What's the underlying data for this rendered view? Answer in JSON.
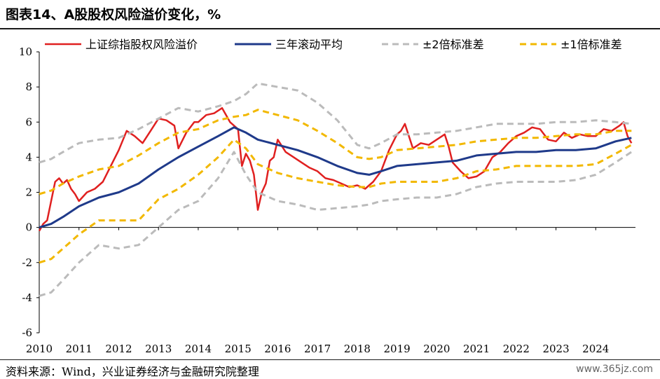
{
  "header": {
    "title": "图表14、A股股权风险溢价变化，%"
  },
  "footer": {
    "source": "资料来源：Wind，兴业证券经济与金融研究院整理",
    "watermark": "www.365jz.com"
  },
  "chart_data": {
    "type": "line",
    "title": "图表14、A股股权风险溢价变化，%",
    "x_ticks": [
      "2010",
      "2011",
      "2012",
      "2013",
      "2014",
      "2015",
      "2016",
      "2017",
      "2018",
      "2019",
      "2020",
      "2021",
      "2022",
      "2023",
      "2024"
    ],
    "y_ticks": [
      "10",
      "8",
      "6",
      "4",
      "2",
      "0",
      "-2",
      "-4",
      "-6"
    ],
    "ylim": [
      -6,
      10
    ],
    "xlim": [
      2010,
      2025
    ],
    "legend_position": "top",
    "series": [
      {
        "name": "上证综指股权风险溢价",
        "color": "#e02020",
        "style": "solid",
        "x": [
          2010.0,
          2010.1,
          2010.2,
          2010.3,
          2010.4,
          2010.5,
          2010.6,
          2010.7,
          2010.8,
          2010.9,
          2011.0,
          2011.2,
          2011.4,
          2011.6,
          2011.8,
          2012.0,
          2012.2,
          2012.4,
          2012.6,
          2012.8,
          2013.0,
          2013.2,
          2013.4,
          2013.5,
          2013.7,
          2013.9,
          2014.0,
          2014.2,
          2014.4,
          2014.6,
          2014.8,
          2014.9,
          2015.0,
          2015.1,
          2015.2,
          2015.3,
          2015.4,
          2015.5,
          2015.6,
          2015.7,
          2015.8,
          2015.9,
          2016.0,
          2016.2,
          2016.4,
          2016.6,
          2016.8,
          2017.0,
          2017.2,
          2017.4,
          2017.6,
          2017.8,
          2018.0,
          2018.2,
          2018.4,
          2018.6,
          2018.8,
          2019.0,
          2019.1,
          2019.2,
          2019.4,
          2019.6,
          2019.8,
          2020.0,
          2020.2,
          2020.3,
          2020.4,
          2020.6,
          2020.8,
          2021.0,
          2021.2,
          2021.4,
          2021.6,
          2021.8,
          2022.0,
          2022.2,
          2022.4,
          2022.6,
          2022.8,
          2023.0,
          2023.2,
          2023.4,
          2023.6,
          2023.8,
          2024.0,
          2024.2,
          2024.4,
          2024.6,
          2024.7,
          2024.8,
          2024.9
        ],
        "y": [
          -0.2,
          0.2,
          0.4,
          1.5,
          2.6,
          2.8,
          2.5,
          2.7,
          2.2,
          1.9,
          1.5,
          2.0,
          2.2,
          2.6,
          3.5,
          4.4,
          5.5,
          5.2,
          4.8,
          5.5,
          6.2,
          6.1,
          5.8,
          4.5,
          5.4,
          6.0,
          6.0,
          6.4,
          6.5,
          6.8,
          6.0,
          5.8,
          5.6,
          3.5,
          4.2,
          3.8,
          3.0,
          1.0,
          2.0,
          2.5,
          3.8,
          4.0,
          5.0,
          4.3,
          4.0,
          3.7,
          3.4,
          3.2,
          2.8,
          2.7,
          2.5,
          2.3,
          2.4,
          2.2,
          2.6,
          3.2,
          4.4,
          5.3,
          5.5,
          5.9,
          4.5,
          4.8,
          4.7,
          5.0,
          5.3,
          4.6,
          3.7,
          3.2,
          2.8,
          2.9,
          3.2,
          4.0,
          4.3,
          4.8,
          5.2,
          5.4,
          5.7,
          5.6,
          5.0,
          4.9,
          5.4,
          5.1,
          5.3,
          5.2,
          5.2,
          5.6,
          5.5,
          5.8,
          6.0,
          5.2,
          4.8
        ]
      },
      {
        "name": "三年滚动平均",
        "color": "#1f3a8a",
        "style": "solid",
        "x": [
          2010.0,
          2010.3,
          2010.6,
          2011.0,
          2011.5,
          2012.0,
          2012.5,
          2013.0,
          2013.5,
          2014.0,
          2014.5,
          2014.9,
          2015.2,
          2015.5,
          2016.0,
          2016.5,
          2017.0,
          2017.5,
          2018.0,
          2018.3,
          2018.6,
          2019.0,
          2019.5,
          2020.0,
          2020.5,
          2021.0,
          2021.5,
          2022.0,
          2022.5,
          2023.0,
          2023.5,
          2024.0,
          2024.5,
          2024.9
        ],
        "y": [
          0.0,
          0.2,
          0.6,
          1.2,
          1.7,
          2.0,
          2.5,
          3.3,
          4.0,
          4.6,
          5.2,
          5.7,
          5.4,
          5.0,
          4.7,
          4.4,
          4.0,
          3.5,
          3.1,
          3.0,
          3.2,
          3.5,
          3.6,
          3.7,
          3.8,
          4.1,
          4.2,
          4.3,
          4.3,
          4.4,
          4.4,
          4.5,
          4.9,
          5.1
        ]
      },
      {
        "name": "±2倍标准差",
        "color": "#bbbbbb",
        "style": "dashed",
        "x": [
          2010.0,
          2010.3,
          2010.6,
          2011.0,
          2011.5,
          2012.0,
          2012.5,
          2013.0,
          2013.5,
          2014.0,
          2014.5,
          2014.9,
          2015.2,
          2015.5,
          2016.0,
          2016.5,
          2017.0,
          2017.5,
          2018.0,
          2018.3,
          2018.6,
          2019.0,
          2019.5,
          2020.0,
          2020.5,
          2021.0,
          2021.5,
          2022.0,
          2022.5,
          2023.0,
          2023.5,
          2024.0,
          2024.5,
          2024.9
        ],
        "y": [
          3.7,
          3.9,
          4.3,
          4.8,
          5.0,
          5.1,
          5.6,
          6.2,
          6.8,
          6.6,
          6.9,
          7.2,
          7.6,
          8.2,
          8.0,
          7.8,
          7.1,
          6.1,
          4.7,
          4.5,
          4.8,
          5.3,
          5.3,
          5.4,
          5.5,
          5.7,
          5.9,
          5.9,
          5.9,
          6.0,
          6.0,
          6.1,
          6.0,
          5.9
        ]
      },
      {
        "name": "±2倍标准差下限",
        "color": "#bbbbbb",
        "style": "dashed",
        "x": [
          2010.0,
          2010.3,
          2010.6,
          2011.0,
          2011.5,
          2012.0,
          2012.5,
          2013.0,
          2013.5,
          2014.0,
          2014.5,
          2014.9,
          2015.2,
          2015.5,
          2016.0,
          2016.5,
          2017.0,
          2017.5,
          2018.0,
          2018.3,
          2018.6,
          2019.0,
          2019.5,
          2020.0,
          2020.5,
          2021.0,
          2021.5,
          2022.0,
          2022.5,
          2023.0,
          2023.5,
          2024.0,
          2024.5,
          2024.9
        ],
        "y": [
          -3.9,
          -3.7,
          -3.0,
          -2.0,
          -1.0,
          -1.2,
          -1.0,
          0.0,
          1.0,
          1.5,
          2.8,
          4.3,
          3.0,
          2.0,
          1.5,
          1.3,
          1.0,
          1.1,
          1.2,
          1.3,
          1.5,
          1.6,
          1.7,
          1.7,
          1.9,
          2.3,
          2.5,
          2.6,
          2.6,
          2.6,
          2.7,
          3.0,
          3.7,
          4.3
        ]
      },
      {
        "name": "±1倍标准差",
        "color": "#f2b800",
        "style": "dashed",
        "x": [
          2010.0,
          2010.3,
          2010.6,
          2011.0,
          2011.5,
          2012.0,
          2012.5,
          2013.0,
          2013.5,
          2014.0,
          2014.5,
          2014.9,
          2015.2,
          2015.5,
          2016.0,
          2016.5,
          2017.0,
          2017.5,
          2018.0,
          2018.3,
          2018.6,
          2019.0,
          2019.5,
          2020.0,
          2020.5,
          2021.0,
          2021.5,
          2022.0,
          2022.5,
          2023.0,
          2023.5,
          2024.0,
          2024.5,
          2024.9
        ],
        "y": [
          1.9,
          2.1,
          2.5,
          2.9,
          3.3,
          3.5,
          4.1,
          4.8,
          5.4,
          5.6,
          6.1,
          6.3,
          6.4,
          6.7,
          6.4,
          6.1,
          5.5,
          4.8,
          4.0,
          3.9,
          4.0,
          4.4,
          4.5,
          4.6,
          4.7,
          4.9,
          5.0,
          5.1,
          5.1,
          5.2,
          5.3,
          5.3,
          5.5,
          5.5
        ]
      },
      {
        "name": "±1倍标准差下限",
        "color": "#f2b800",
        "style": "dashed",
        "x": [
          2010.0,
          2010.3,
          2010.6,
          2011.0,
          2011.5,
          2012.0,
          2012.5,
          2013.0,
          2013.5,
          2014.0,
          2014.5,
          2014.9,
          2015.2,
          2015.5,
          2016.0,
          2016.5,
          2017.0,
          2017.5,
          2018.0,
          2018.3,
          2018.6,
          2019.0,
          2019.5,
          2020.0,
          2020.5,
          2021.0,
          2021.5,
          2022.0,
          2022.5,
          2023.0,
          2023.5,
          2024.0,
          2024.5,
          2024.9
        ],
        "y": [
          -2.0,
          -1.8,
          -1.2,
          -0.4,
          0.4,
          0.4,
          0.4,
          1.6,
          2.2,
          3.0,
          4.0,
          5.0,
          4.5,
          3.6,
          3.1,
          2.8,
          2.6,
          2.4,
          2.3,
          2.3,
          2.5,
          2.6,
          2.6,
          2.6,
          2.8,
          3.2,
          3.3,
          3.5,
          3.5,
          3.5,
          3.5,
          3.6,
          4.2,
          4.7
        ]
      }
    ],
    "legend": [
      "上证综指股权风险溢价",
      "三年滚动平均",
      "±2倍标准差",
      "±1倍标准差"
    ]
  }
}
